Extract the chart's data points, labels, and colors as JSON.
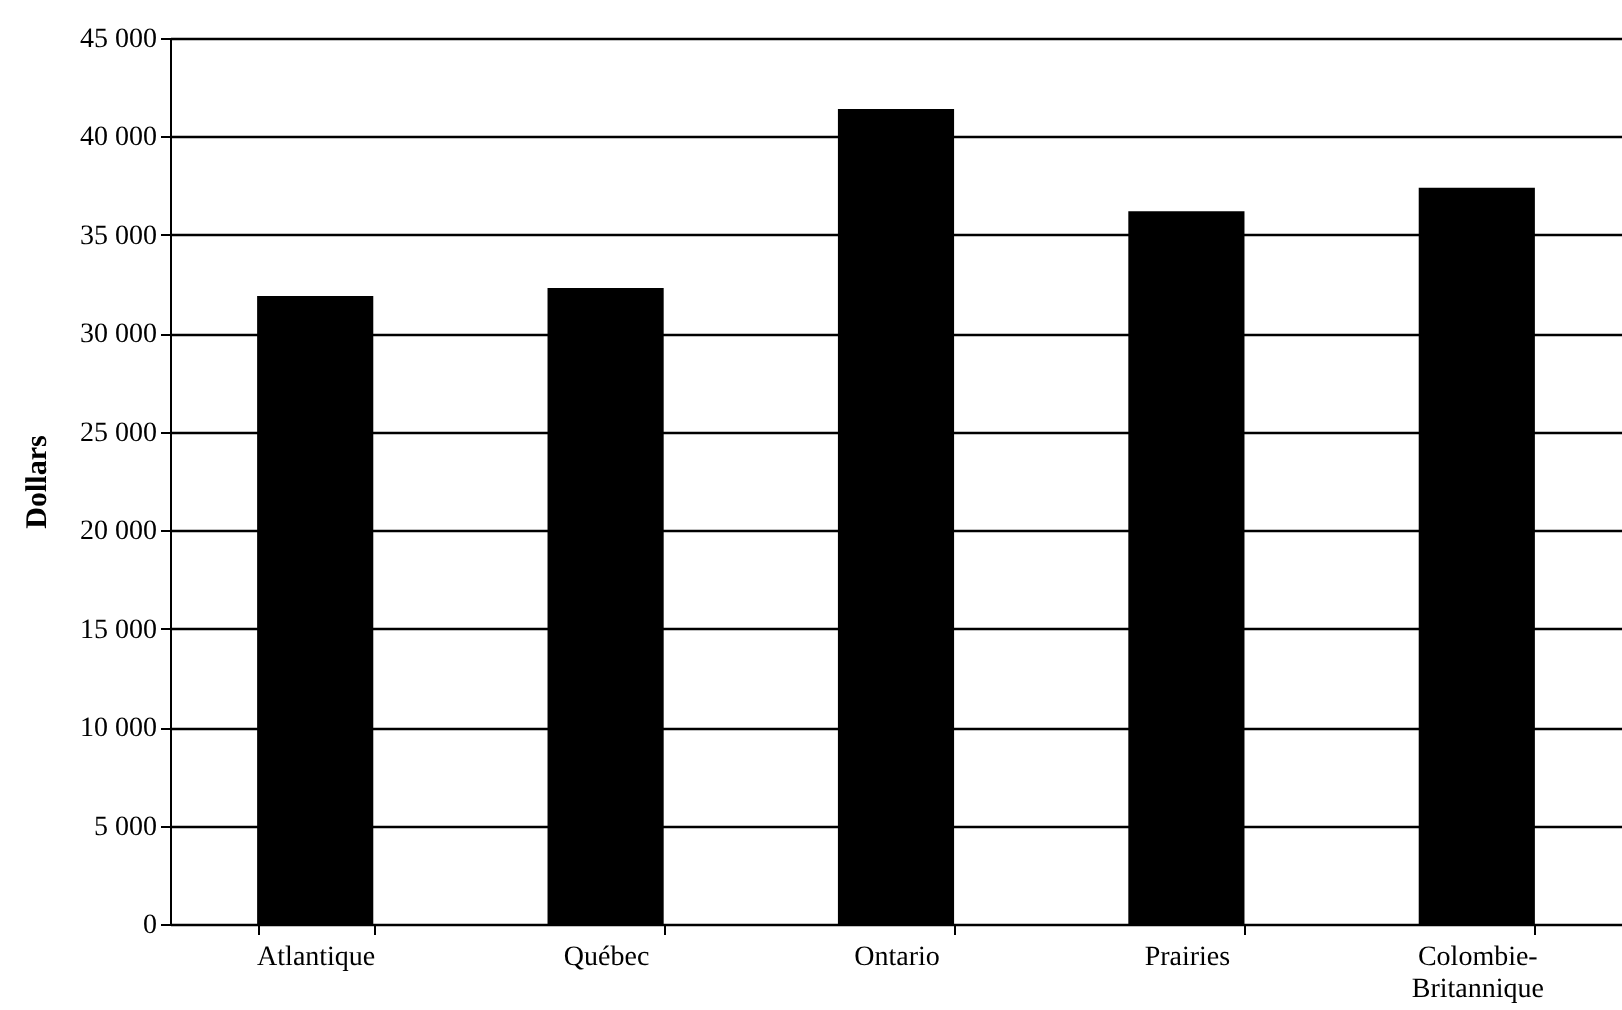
{
  "chart_data": {
    "type": "bar",
    "ylabel": "Dollars",
    "categories": [
      "Atlantique",
      "Québec",
      "Ontario",
      "Prairies",
      "Colombie-Britannique"
    ],
    "values": [
      31900,
      32300,
      41400,
      36200,
      37400
    ],
    "color": "#000000",
    "ylim": [
      0,
      45000
    ],
    "yticks": [
      0,
      {
        "value": 5000,
        "label": "5 000"
      },
      {
        "value": 10000,
        "label": "10 000"
      },
      {
        "value": 15000,
        "label": "15 000"
      },
      {
        "value": 20000,
        "label": "20 000"
      },
      {
        "value": 25000,
        "label": "25 000"
      },
      {
        "value": 30000,
        "label": "30 000"
      },
      {
        "value": 35000,
        "label": "35 000"
      },
      {
        "value": 40000,
        "label": "40 000"
      },
      {
        "value": 45000,
        "label": "45 000"
      }
    ],
    "grid": "y"
  }
}
